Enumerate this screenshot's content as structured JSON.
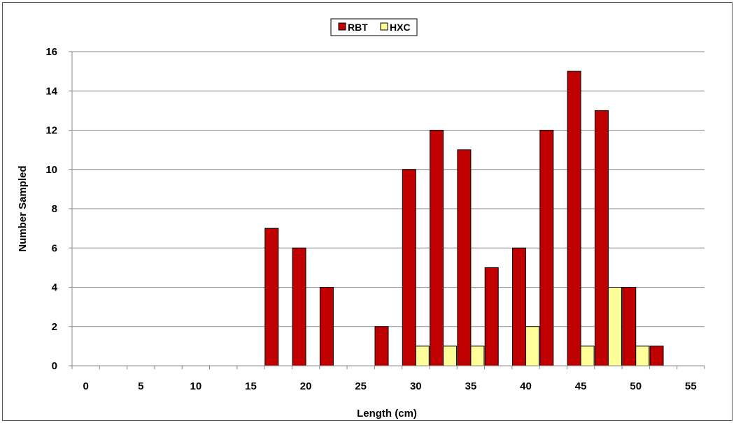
{
  "chart_data": {
    "type": "bar",
    "title": "",
    "xlabel": "Length (cm)",
    "ylabel": "Number Sampled",
    "x_tick_labels": [
      "0",
      "5",
      "10",
      "15",
      "20",
      "25",
      "30",
      "35",
      "40",
      "45",
      "50",
      "55"
    ],
    "categories": [
      0,
      2.5,
      5,
      7.5,
      10,
      12.5,
      15,
      17.5,
      20,
      22.5,
      25,
      27.5,
      30,
      32.5,
      35,
      37.5,
      40,
      42.5,
      45,
      47.5,
      50,
      52.5,
      55
    ],
    "series": [
      {
        "name": "RBT",
        "color": "#c00000",
        "values": [
          0,
          0,
          0,
          0,
          0,
          0,
          0,
          7,
          6,
          4,
          0,
          2,
          10,
          12,
          11,
          5,
          6,
          12,
          15,
          13,
          4,
          1,
          0
        ]
      },
      {
        "name": "HXC",
        "color": "#ffff99",
        "values": [
          0,
          0,
          0,
          0,
          0,
          0,
          0,
          0,
          0,
          0,
          0,
          0,
          1,
          1,
          1,
          0,
          2,
          0,
          1,
          4,
          1,
          0,
          0
        ]
      }
    ],
    "ylim": [
      0,
      16
    ],
    "y_ticks": [
      0,
      2,
      4,
      6,
      8,
      10,
      12,
      14,
      16
    ],
    "grid": true,
    "legend_position": "top-center"
  }
}
